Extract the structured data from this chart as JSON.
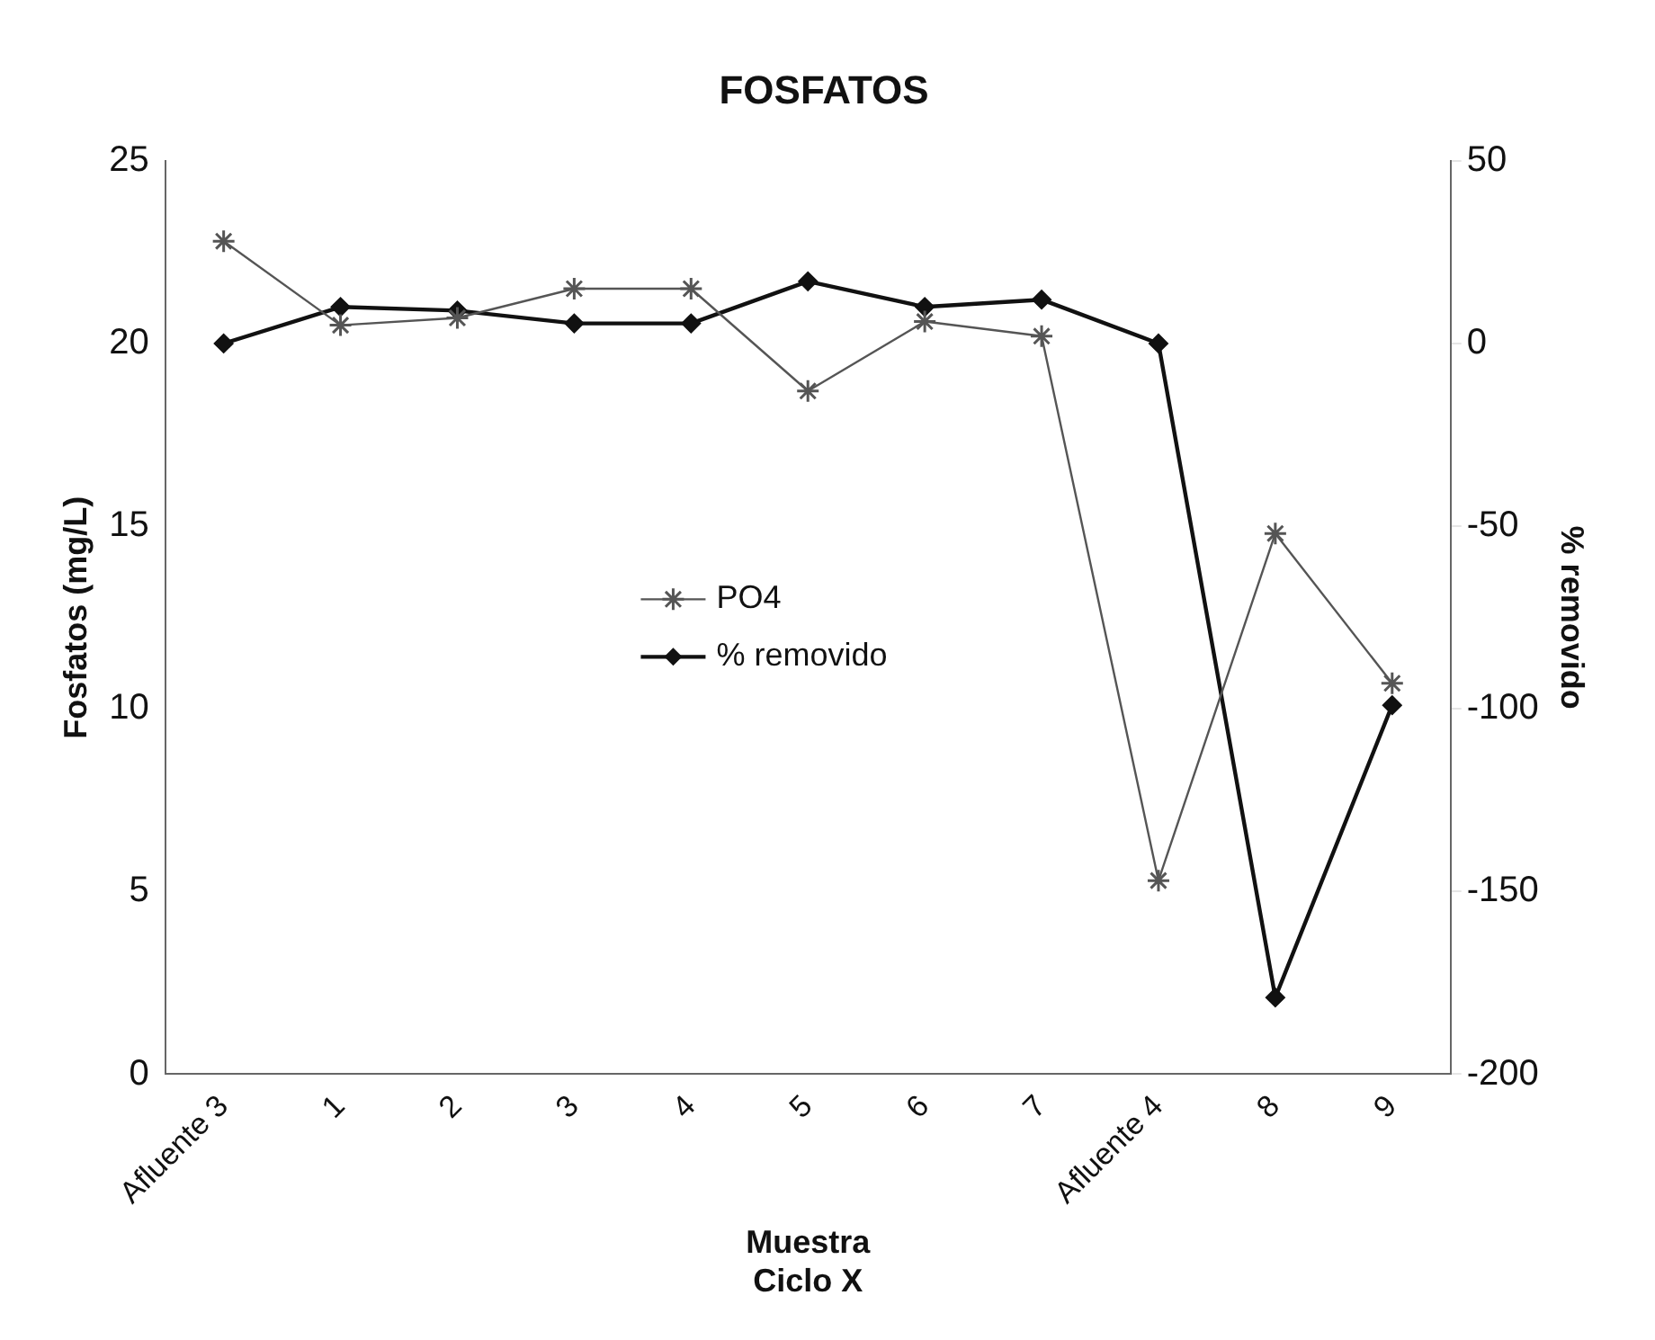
{
  "chart_data": {
    "type": "line",
    "title": "FOSFATOS",
    "xlabel": "Muestra\nCiclo X",
    "ylabel": "Fosfatos (mg/L)",
    "y2label": "% removido",
    "categories": [
      "Afluente 3",
      "1",
      "2",
      "3",
      "4",
      "5",
      "6",
      "7",
      "Afluente 4",
      "8",
      "9"
    ],
    "series": [
      {
        "name": "PO4",
        "color": "#555555",
        "marker": "cross",
        "values": [
          22.8,
          20.5,
          20.7,
          21.5,
          21.5,
          18.7,
          20.6,
          20.2,
          5.3,
          14.8,
          10.7
        ]
      },
      {
        "name": "% removido",
        "color": "#111111",
        "marker": "diamond",
        "axis": "y2",
        "values": [
          0,
          10,
          9,
          5.5,
          5.5,
          17,
          10,
          12,
          0,
          -179,
          -99
        ]
      }
    ],
    "ylim": [
      0,
      25
    ],
    "yticks": [
      0,
      5,
      10,
      15,
      20,
      25
    ],
    "y2lim": [
      -200,
      50
    ],
    "y2ticks": [
      -200,
      -150,
      -100,
      -50,
      0,
      50
    ],
    "grid": false,
    "legend": "center",
    "line_style": "solid"
  }
}
